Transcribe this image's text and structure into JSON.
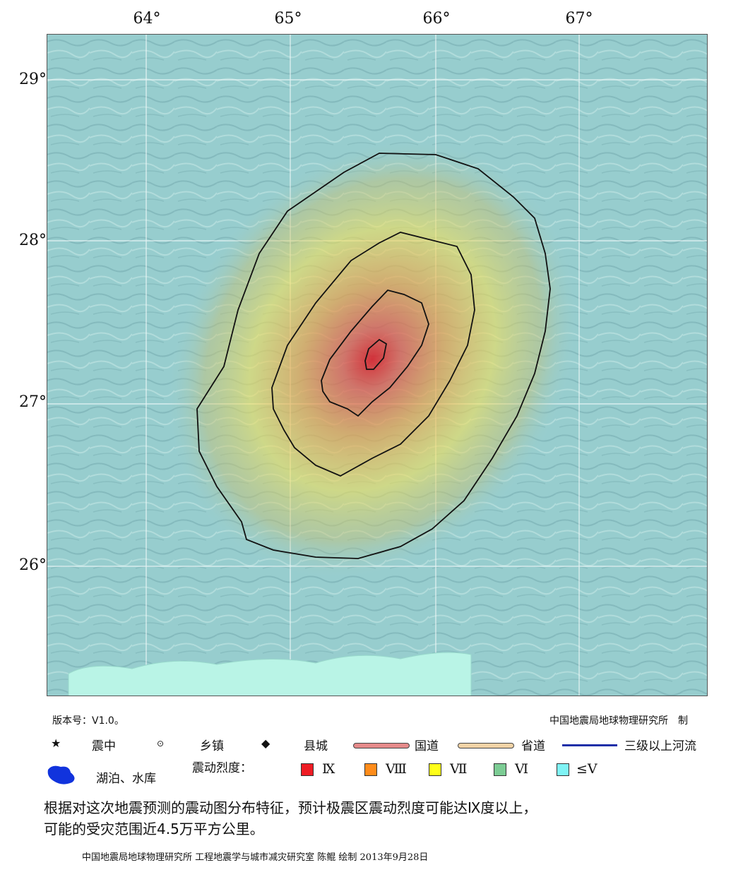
{
  "map": {
    "lon_labels": [
      "64°",
      "65°",
      "66°",
      "67°"
    ],
    "lat_labels": [
      "29°",
      "28°",
      "27°",
      "26°"
    ],
    "colors": {
      "background_low": "#8fcdd0",
      "terrain": "#a9d2d0",
      "sea": "#b9f4e6",
      "contour": "#111111",
      "grid": "#e8f4f4"
    },
    "intensity_zones": [
      "IX",
      "Ⅷ",
      "Ⅶ",
      "Ⅵ",
      "≤Ⅴ"
    ]
  },
  "footer": {
    "version": "版本号：V1.0。",
    "maker": "中国地震局地球物理研究所　制",
    "legend": {
      "epicenter_label": "震中",
      "town_label": "乡镇",
      "county_label": "县城",
      "national_road_label": "国道",
      "provincial_road_label": "省道",
      "river_label": "三级以上河流",
      "lake_label": "湖泊、水库",
      "intensity_title": "震动烈度：",
      "intensity_items": [
        {
          "label": "Ⅸ",
          "color": "#ee1c24"
        },
        {
          "label": "Ⅷ",
          "color": "#ff8c1a"
        },
        {
          "label": "Ⅶ",
          "color": "#ffff1a"
        },
        {
          "label": "Ⅵ",
          "color": "#7ccc94"
        },
        {
          "label": "≤Ⅴ",
          "color": "#7ff3f5"
        }
      ],
      "road_colors": {
        "national": "#e58a8a",
        "provincial": "#f1d3a6",
        "river": "#1f2fa8",
        "lake": "#1133dd"
      }
    },
    "summary_line1": "根据对这次地震预测的震动图分布特征，预计极震区震动烈度可能达Ⅸ度以上，",
    "summary_line2": "可能的受灾范围近4.5万平方公里。",
    "credit": "中国地震局地球物理研究所 工程地震学与城市减灾研究室 陈鲲 绘制 2013年9月28日"
  }
}
